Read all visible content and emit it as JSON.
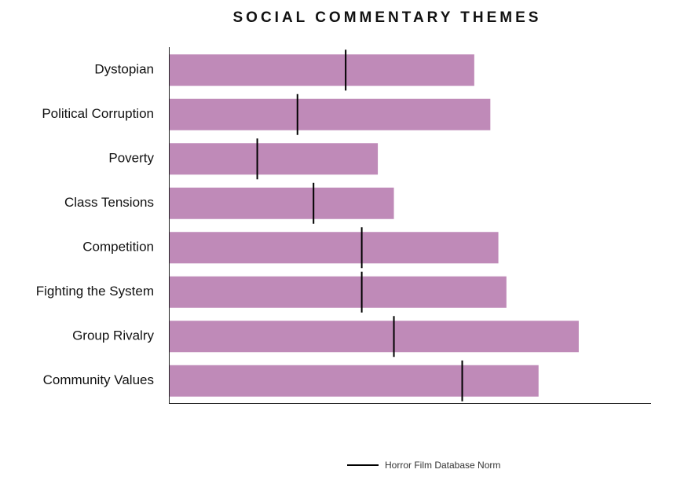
{
  "chart_data": {
    "type": "bar",
    "orientation": "horizontal",
    "title": "SOCIAL COMMENTARY THEMES",
    "categories": [
      "Dystopian",
      "Political Corruption",
      "Poverty",
      "Class Tensions",
      "Competition",
      "Fighting the System",
      "Group Rivalry",
      "Community Values"
    ],
    "series": [
      {
        "values": [
          38,
          40,
          26,
          28,
          41,
          42,
          51,
          46
        ],
        "color": "#bf8ab8"
      },
      {
        "name": "Horror Film Database Norm",
        "type": "marker",
        "values": [
          22,
          16,
          11,
          18,
          24,
          24,
          28,
          36.5
        ],
        "color": "#000000"
      }
    ],
    "xlim": [
      0,
      60
    ],
    "grid": false,
    "legend": "bottom"
  }
}
